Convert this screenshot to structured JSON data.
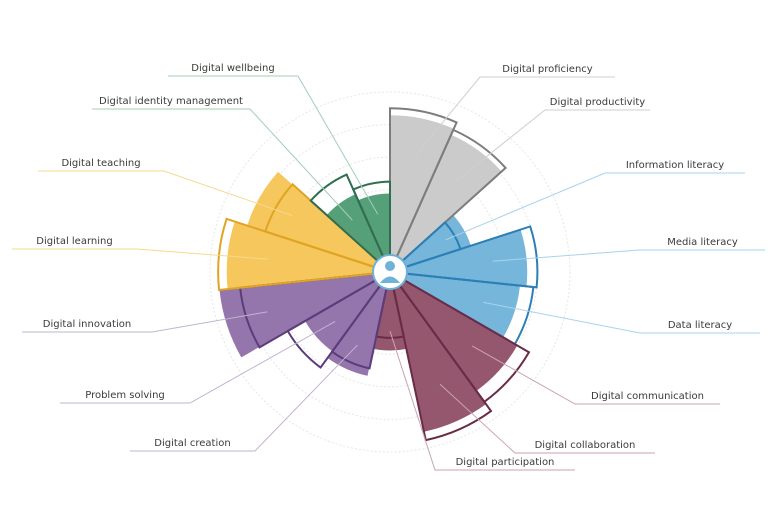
{
  "chart_data": {
    "type": "polar-area",
    "title": "",
    "rmax": 100,
    "rings": [
      20,
      40,
      60,
      80,
      100
    ],
    "categories": [
      {
        "label": "Digital proficiency",
        "group": "grey",
        "value": 86,
        "target": 90
      },
      {
        "label": "Digital productivity",
        "group": "grey",
        "value": 82,
        "target": 85
      },
      {
        "label": "Information literacy",
        "group": "blue",
        "value": 42,
        "target": 35
      },
      {
        "label": "Media literacy",
        "group": "blue",
        "value": 74,
        "target": 80
      },
      {
        "label": "Data literacy",
        "group": "blue",
        "value": 70,
        "target": 78
      },
      {
        "label": "Digital communication",
        "group": "maroon",
        "value": 80,
        "target": 88
      },
      {
        "label": "Digital collaboration",
        "group": "maroon",
        "value": 90,
        "target": 95
      },
      {
        "label": "Digital participation",
        "group": "maroon",
        "value": 38,
        "target": 30
      },
      {
        "label": "Digital creation",
        "group": "purple",
        "value": 55,
        "target": 50
      },
      {
        "label": "Problem solving",
        "group": "purple",
        "value": 50,
        "target": 62
      },
      {
        "label": "Digital innovation",
        "group": "purple",
        "value": 95,
        "target": 82
      },
      {
        "label": "Digital learning",
        "group": "yellow",
        "value": 90,
        "target": 95
      },
      {
        "label": "Digital teaching",
        "group": "yellow",
        "value": 82,
        "target": 70
      },
      {
        "label": "Digital identity management",
        "group": "green",
        "value": 42,
        "target": 55
      },
      {
        "label": "Digital wellbeing",
        "group": "green",
        "value": 38,
        "target": 45
      }
    ],
    "groups": {
      "grey": {
        "fill": "#c8c8c8",
        "stroke": "#7d7d7d",
        "leader": "#cfcfcf"
      },
      "blue": {
        "fill": "#6fb2d9",
        "stroke": "#2b7fb5",
        "leader": "#a8d3ec"
      },
      "maroon": {
        "fill": "#8e4e66",
        "stroke": "#6b2a45",
        "leader": "#c9a3b2"
      },
      "purple": {
        "fill": "#8e6fa8",
        "stroke": "#5a3d7a",
        "leader": "#c2b3d3"
      },
      "yellow": {
        "fill": "#f5c454",
        "stroke": "#e0a422",
        "leader": "#f5d98e"
      },
      "green": {
        "fill": "#4c9a72",
        "stroke": "#2f6e50",
        "leader": "#a6cdb6"
      }
    },
    "center_icon": "user-icon"
  }
}
